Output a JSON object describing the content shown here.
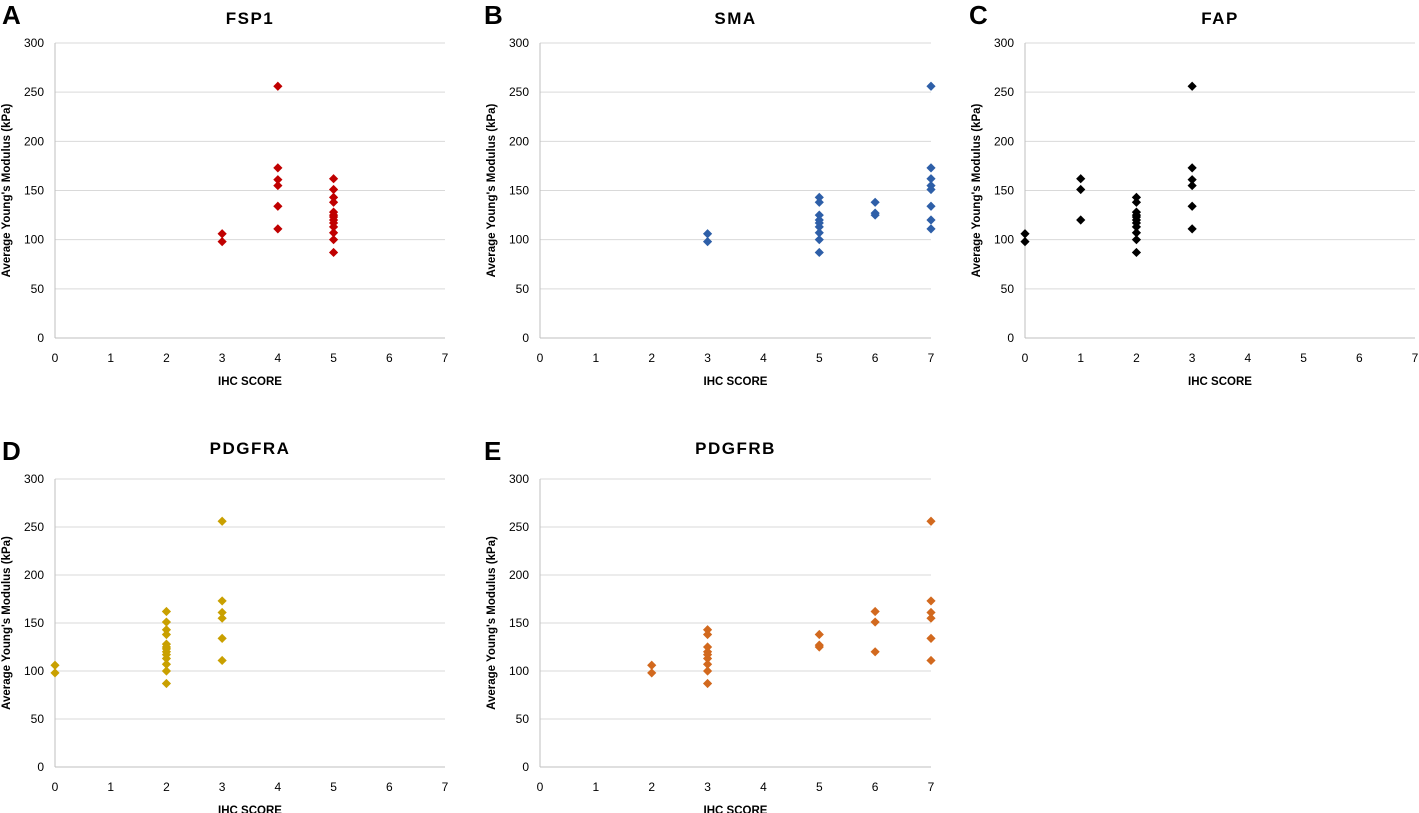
{
  "chart_data": [
    {
      "panel": "A",
      "type": "scatter",
      "title": "FSP1",
      "xlabel": "IHC SCORE",
      "ylabel": "Average Young's Modulus (kPa)",
      "xlim": [
        0,
        7
      ],
      "ylim": [
        0,
        300
      ],
      "xticks": [
        0,
        1,
        2,
        3,
        4,
        5,
        6,
        7
      ],
      "yticks": [
        0,
        50,
        100,
        150,
        200,
        250,
        300
      ],
      "color": "#c00000",
      "points": [
        [
          3,
          106
        ],
        [
          3,
          98
        ],
        [
          4,
          256
        ],
        [
          4,
          173
        ],
        [
          4,
          161
        ],
        [
          4,
          155
        ],
        [
          4,
          134
        ],
        [
          4,
          111
        ],
        [
          5,
          162
        ],
        [
          5,
          151
        ],
        [
          5,
          143
        ],
        [
          5,
          138
        ],
        [
          5,
          128
        ],
        [
          5,
          125
        ],
        [
          5,
          123
        ],
        [
          5,
          120
        ],
        [
          5,
          117
        ],
        [
          5,
          113
        ],
        [
          5,
          107
        ],
        [
          5,
          100
        ],
        [
          5,
          87
        ]
      ]
    },
    {
      "panel": "B",
      "type": "scatter",
      "title": "SMA",
      "xlabel": "IHC SCORE",
      "ylabel": "Average Young's Modulus (kPa)",
      "xlim": [
        0,
        7
      ],
      "ylim": [
        0,
        300
      ],
      "xticks": [
        0,
        1,
        2,
        3,
        4,
        5,
        6,
        7
      ],
      "yticks": [
        0,
        50,
        100,
        150,
        200,
        250,
        300
      ],
      "color": "#2e5fa8",
      "points": [
        [
          3,
          106
        ],
        [
          3,
          98
        ],
        [
          5,
          143
        ],
        [
          5,
          138
        ],
        [
          5,
          125
        ],
        [
          5,
          120
        ],
        [
          5,
          117
        ],
        [
          5,
          113
        ],
        [
          5,
          107
        ],
        [
          5,
          100
        ],
        [
          5,
          87
        ],
        [
          6,
          138
        ],
        [
          6,
          127
        ],
        [
          6,
          125
        ],
        [
          7,
          256
        ],
        [
          7,
          173
        ],
        [
          7,
          162
        ],
        [
          7,
          155
        ],
        [
          7,
          151
        ],
        [
          7,
          134
        ],
        [
          7,
          120
        ],
        [
          7,
          111
        ]
      ]
    },
    {
      "panel": "C",
      "type": "scatter",
      "title": "FAP",
      "xlabel": "IHC SCORE",
      "ylabel": "Average Young's Modulus (kPa)",
      "xlim": [
        0,
        7
      ],
      "ylim": [
        0,
        300
      ],
      "xticks": [
        0,
        1,
        2,
        3,
        4,
        5,
        6,
        7
      ],
      "yticks": [
        0,
        50,
        100,
        150,
        200,
        250,
        300
      ],
      "color": "#000000",
      "points": [
        [
          0,
          106
        ],
        [
          0,
          98
        ],
        [
          1,
          162
        ],
        [
          1,
          151
        ],
        [
          1,
          120
        ],
        [
          2,
          143
        ],
        [
          2,
          138
        ],
        [
          2,
          128
        ],
        [
          2,
          125
        ],
        [
          2,
          123
        ],
        [
          2,
          120
        ],
        [
          2,
          117
        ],
        [
          2,
          113
        ],
        [
          2,
          107
        ],
        [
          2,
          100
        ],
        [
          2,
          87
        ],
        [
          3,
          256
        ],
        [
          3,
          173
        ],
        [
          3,
          161
        ],
        [
          3,
          155
        ],
        [
          3,
          134
        ],
        [
          3,
          111
        ]
      ]
    },
    {
      "panel": "D",
      "type": "scatter",
      "title": "PDGFRA",
      "xlabel": "IHC SCORE",
      "ylabel": "Average Young's Modulus (kPa)",
      "xlim": [
        0,
        7
      ],
      "ylim": [
        0,
        300
      ],
      "xticks": [
        0,
        1,
        2,
        3,
        4,
        5,
        6,
        7
      ],
      "yticks": [
        0,
        50,
        100,
        150,
        200,
        250,
        300
      ],
      "color": "#c9a000",
      "points": [
        [
          0,
          106
        ],
        [
          0,
          98
        ],
        [
          2,
          162
        ],
        [
          2,
          151
        ],
        [
          2,
          143
        ],
        [
          2,
          138
        ],
        [
          2,
          128
        ],
        [
          2,
          125
        ],
        [
          2,
          123
        ],
        [
          2,
          120
        ],
        [
          2,
          117
        ],
        [
          2,
          113
        ],
        [
          2,
          107
        ],
        [
          2,
          100
        ],
        [
          2,
          87
        ],
        [
          3,
          256
        ],
        [
          3,
          173
        ],
        [
          3,
          161
        ],
        [
          3,
          155
        ],
        [
          3,
          134
        ],
        [
          3,
          111
        ]
      ]
    },
    {
      "panel": "E",
      "type": "scatter",
      "title": "PDGFRB",
      "xlabel": "IHC SCORE",
      "ylabel": "Average Young's Modulus (kPa)",
      "xlim": [
        0,
        7
      ],
      "ylim": [
        0,
        300
      ],
      "xticks": [
        0,
        1,
        2,
        3,
        4,
        5,
        6,
        7
      ],
      "yticks": [
        0,
        50,
        100,
        150,
        200,
        250,
        300
      ],
      "color": "#d2691e",
      "points": [
        [
          2,
          106
        ],
        [
          2,
          98
        ],
        [
          3,
          143
        ],
        [
          3,
          138
        ],
        [
          3,
          125
        ],
        [
          3,
          120
        ],
        [
          3,
          117
        ],
        [
          3,
          113
        ],
        [
          3,
          107
        ],
        [
          3,
          100
        ],
        [
          3,
          87
        ],
        [
          5,
          138
        ],
        [
          5,
          127
        ],
        [
          5,
          125
        ],
        [
          6,
          162
        ],
        [
          6,
          151
        ],
        [
          6,
          120
        ],
        [
          7,
          256
        ],
        [
          7,
          173
        ],
        [
          7,
          161
        ],
        [
          7,
          155
        ],
        [
          7,
          134
        ],
        [
          7,
          111
        ]
      ]
    }
  ]
}
